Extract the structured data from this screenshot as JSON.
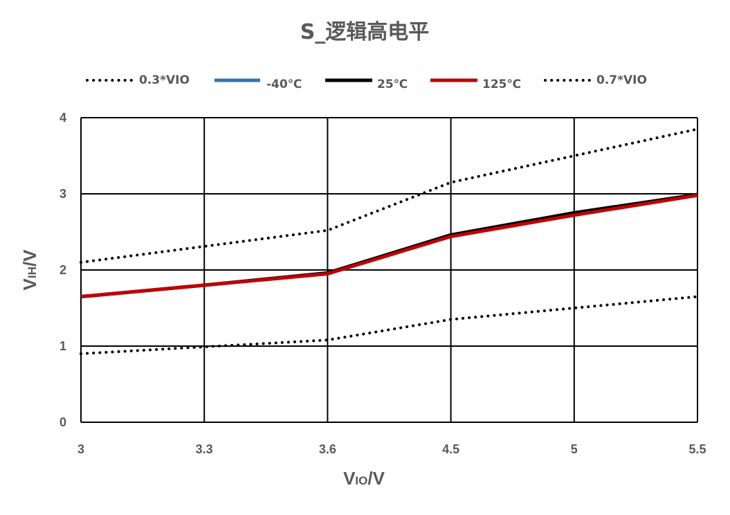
{
  "chart_data": {
    "type": "line",
    "title": "S_逻辑高电平",
    "categories": [
      "3",
      "3.3",
      "3.6",
      "4.5",
      "5",
      "5.5"
    ],
    "xlabel": {
      "main": "V",
      "sub": "IO",
      "unit": "/V"
    },
    "ylabel": {
      "main": "V",
      "sub": "IH",
      "unit": "/V"
    },
    "ylim": [
      0,
      4
    ],
    "yticks": [
      "0",
      "1",
      "2",
      "3",
      "4"
    ],
    "grid": true,
    "legend_position": "top",
    "series": [
      {
        "name": "0.3*VIO",
        "style": "dotted",
        "color": "#000000",
        "values": [
          0.9,
          0.99,
          1.08,
          1.35,
          1.5,
          1.65
        ]
      },
      {
        "name": "-40℃",
        "style": "solid",
        "color": "#2e75b6",
        "values": [
          1.65,
          1.8,
          1.96,
          2.46,
          2.75,
          2.99
        ]
      },
      {
        "name": "25℃",
        "style": "solid",
        "color": "#000000",
        "values": [
          1.65,
          1.8,
          1.96,
          2.46,
          2.75,
          2.99
        ]
      },
      {
        "name": "125℃",
        "style": "solid",
        "color": "#c00000",
        "values": [
          1.65,
          1.8,
          1.95,
          2.44,
          2.72,
          2.98
        ]
      },
      {
        "name": "0.7*VIO",
        "style": "dotted",
        "color": "#000000",
        "values": [
          2.1,
          2.31,
          2.52,
          3.15,
          3.5,
          3.85
        ]
      }
    ]
  }
}
